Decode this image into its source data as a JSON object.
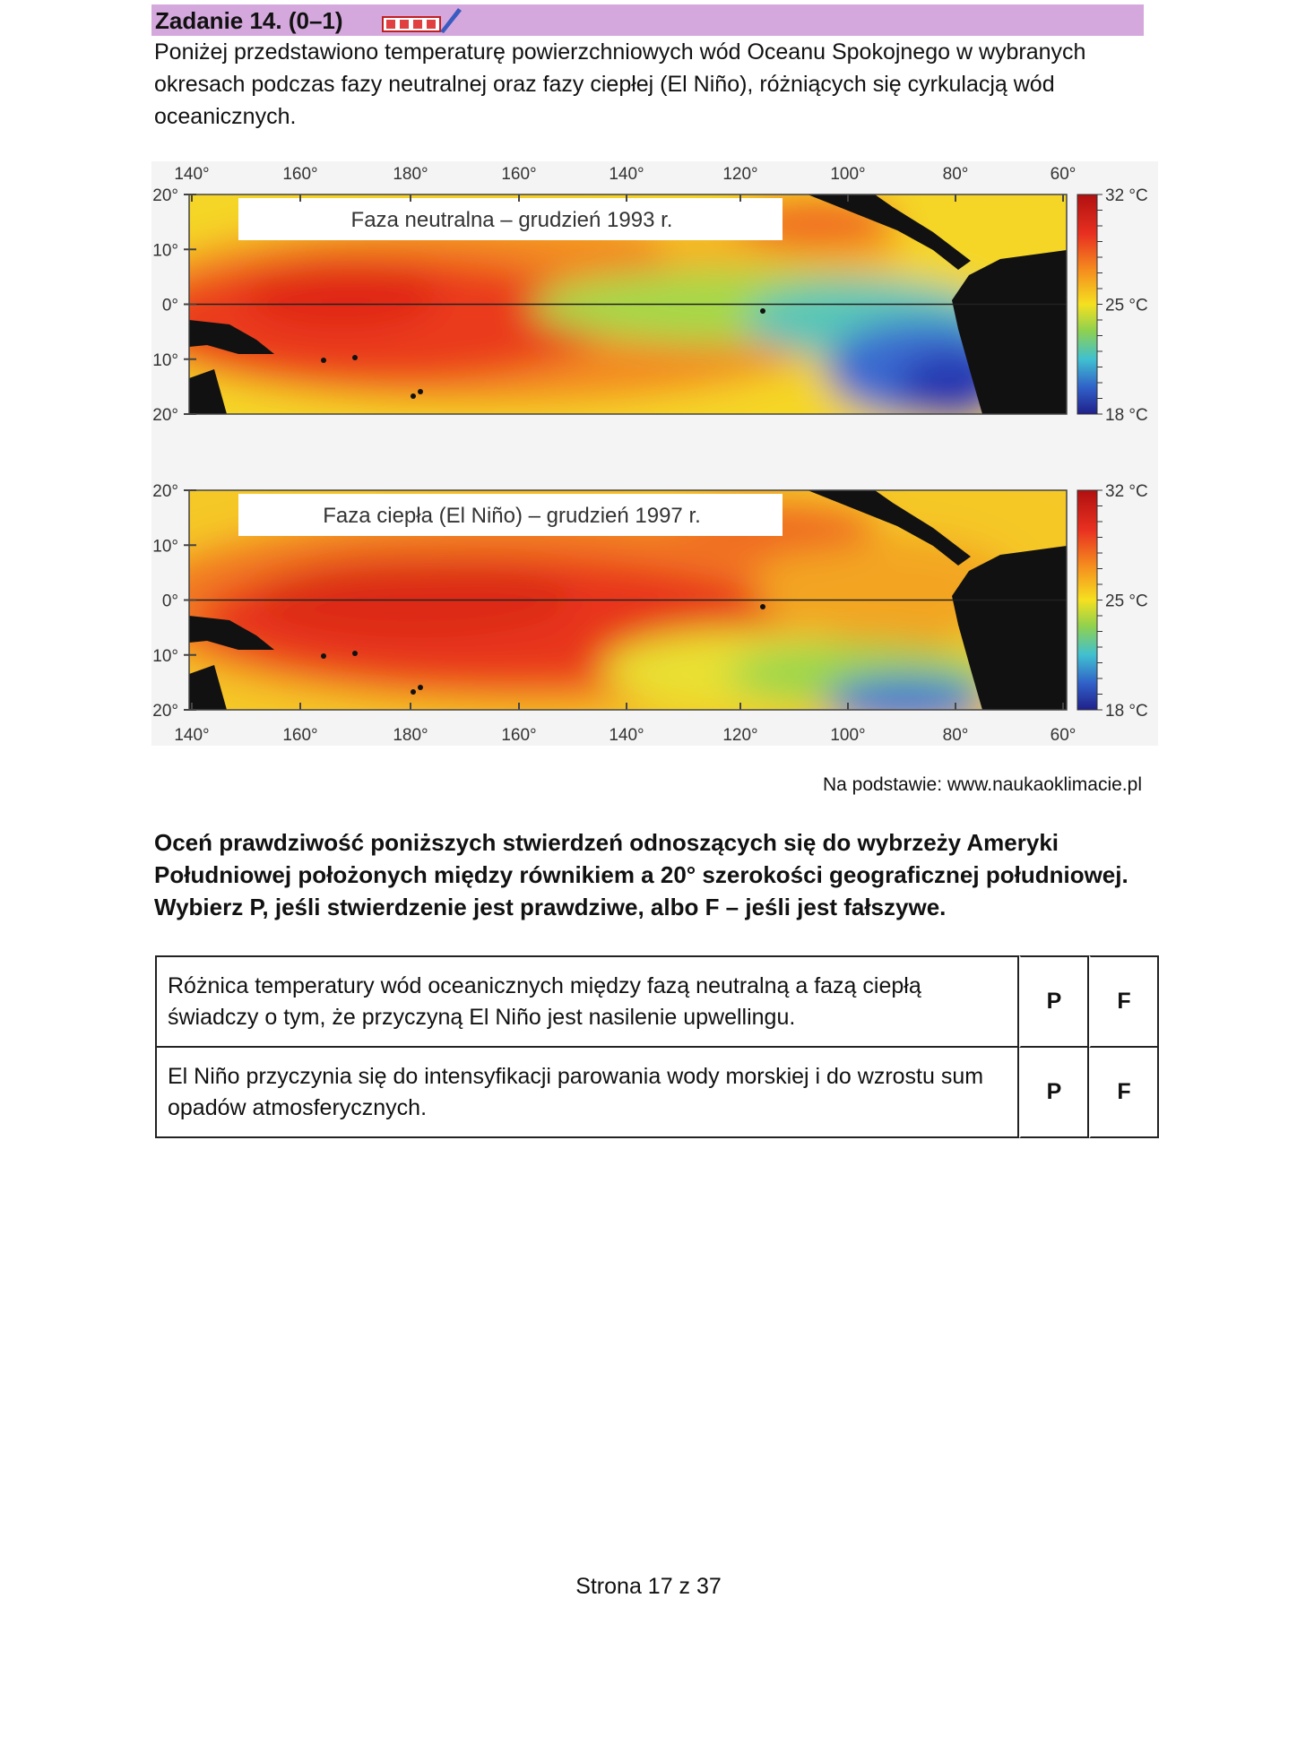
{
  "header": {
    "title": "Zadanie 14. (0–1)"
  },
  "intro": "Poniżej przedstawiono temperaturę powierzchniowych wód Oceanu Spokojnego w wybranych okresach podczas fazy neutralnej oraz fazy ciepłej (El Niño), różniących się cyrkulacją wód oceanicznych.",
  "maps": [
    {
      "title": "Faza neutralna – grudzień 1993 r.",
      "lon_labels": [
        "140°",
        "160°",
        "180°",
        "160°",
        "140°",
        "120°",
        "100°",
        "80°",
        "60°"
      ],
      "lat_labels": [
        "20°",
        "10°",
        "0°",
        "10°",
        "20°"
      ],
      "scale_labels": [
        "32 °C",
        "25 °C",
        "18 °C"
      ]
    },
    {
      "title": "Faza ciepła (El Niño) – grudzień 1997 r.",
      "lon_labels": [
        "140°",
        "160°",
        "180°",
        "160°",
        "140°",
        "120°",
        "100°",
        "80°",
        "60°"
      ],
      "lat_labels": [
        "20°",
        "10°",
        "0°",
        "10°",
        "20°"
      ],
      "scale_labels": [
        "32 °C",
        "25 °C",
        "18 °C"
      ]
    }
  ],
  "source": "Na podstawie: www.naukaoklimacie.pl",
  "question": "Oceń prawdziwość poniższych stwierdzeń odnoszących się do wybrzeży Ameryki Południowej położonych między równikiem a 20° szerokości geograficznej południowej. Wybierz P, jeśli stwierdzenie jest prawdziwe, albo F – jeśli jest fałszywe.",
  "table": {
    "rows": [
      [
        "Różnica temperatury wód oceanicznych między fazą neutralną a fazą ciepłą świadczy o tym, że przyczyną El Niño jest nasilenie upwellingu.",
        "P",
        "F"
      ],
      [
        "El Niño przyczynia się do intensyfikacji parowania wody morskiej i do wzrostu sum opadów atmosferycznych.",
        "P",
        "F"
      ]
    ]
  },
  "footer": "Strona 17 z 37"
}
